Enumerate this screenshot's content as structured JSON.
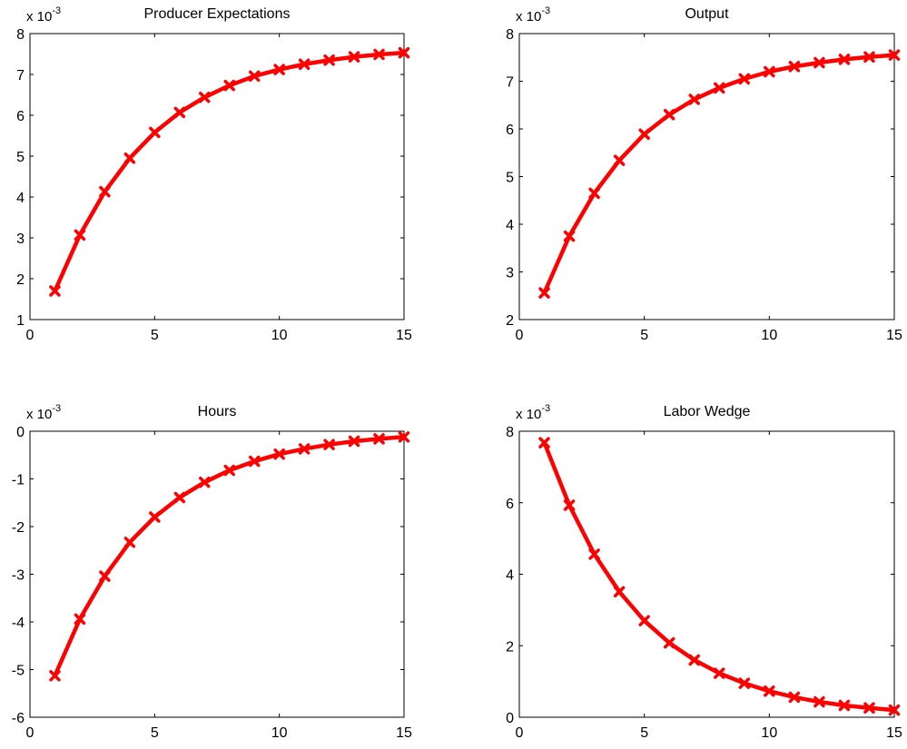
{
  "chart_data": [
    {
      "type": "line",
      "title": "Producer Expectations",
      "multiplier_base": "x 10",
      "multiplier_exp": "-3",
      "xlim": [
        0,
        15
      ],
      "ylim": [
        1,
        8
      ],
      "xticks": [
        0,
        5,
        10,
        15
      ],
      "yticks": [
        1,
        2,
        3,
        4,
        5,
        6,
        7,
        8
      ],
      "x": [
        1,
        2,
        3,
        4,
        5,
        6,
        7,
        8,
        9,
        10,
        11,
        12,
        13,
        14,
        15
      ],
      "series": [
        {
          "values": [
            1.7,
            3.07,
            4.13,
            4.95,
            5.58,
            6.07,
            6.44,
            6.73,
            6.96,
            7.12,
            7.25,
            7.35,
            7.43,
            7.49,
            7.53
          ]
        }
      ],
      "color": "#ff0000",
      "marker": "x"
    },
    {
      "type": "line",
      "title": "Output",
      "multiplier_base": "x 10",
      "multiplier_exp": "-3",
      "xlim": [
        0,
        15
      ],
      "ylim": [
        2,
        8
      ],
      "xticks": [
        0,
        5,
        10,
        15
      ],
      "yticks": [
        2,
        3,
        4,
        5,
        6,
        7,
        8
      ],
      "x": [
        1,
        2,
        3,
        4,
        5,
        6,
        7,
        8,
        9,
        10,
        11,
        12,
        13,
        14,
        15
      ],
      "series": [
        {
          "values": [
            2.56,
            3.75,
            4.65,
            5.34,
            5.89,
            6.3,
            6.62,
            6.86,
            7.05,
            7.2,
            7.31,
            7.39,
            7.46,
            7.51,
            7.55
          ]
        }
      ],
      "color": "#ff0000",
      "marker": "x"
    },
    {
      "type": "line",
      "title": "Hours",
      "multiplier_base": "x 10",
      "multiplier_exp": "-3",
      "xlim": [
        0,
        15
      ],
      "ylim": [
        -6,
        0
      ],
      "xticks": [
        0,
        5,
        10,
        15
      ],
      "yticks": [
        -6,
        -5,
        -4,
        -3,
        -2,
        -1,
        0
      ],
      "x": [
        1,
        2,
        3,
        4,
        5,
        6,
        7,
        8,
        9,
        10,
        11,
        12,
        13,
        14,
        15
      ],
      "series": [
        {
          "values": [
            -5.13,
            -3.94,
            -3.04,
            -2.33,
            -1.8,
            -1.39,
            -1.07,
            -0.82,
            -0.63,
            -0.48,
            -0.37,
            -0.28,
            -0.21,
            -0.16,
            -0.12
          ]
        }
      ],
      "color": "#ff0000",
      "marker": "x"
    },
    {
      "type": "line",
      "title": "Labor Wedge",
      "multiplier_base": "x 10",
      "multiplier_exp": "-3",
      "xlim": [
        0,
        15
      ],
      "ylim": [
        0,
        8
      ],
      "xticks": [
        0,
        5,
        10,
        15
      ],
      "yticks": [
        0,
        2,
        4,
        6,
        8
      ],
      "x": [
        1,
        2,
        3,
        4,
        5,
        6,
        7,
        8,
        9,
        10,
        11,
        12,
        13,
        14,
        15
      ],
      "series": [
        {
          "values": [
            7.68,
            5.93,
            4.56,
            3.51,
            2.7,
            2.08,
            1.6,
            1.23,
            0.95,
            0.73,
            0.56,
            0.43,
            0.33,
            0.26,
            0.2
          ]
        }
      ],
      "color": "#ff0000",
      "marker": "x"
    }
  ]
}
